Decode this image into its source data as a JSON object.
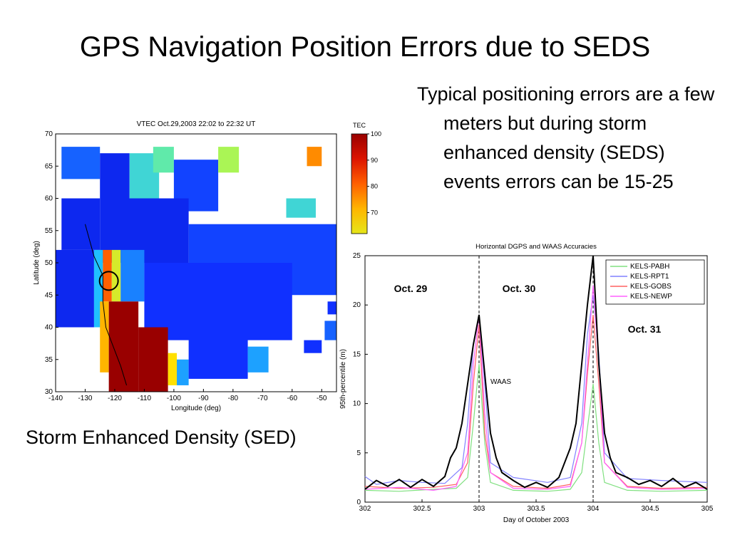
{
  "slide": {
    "title": "GPS Navigation Position Errors due to SEDS",
    "bullet": "Typical positioning errors are a few meters but during storm enhanced density (SEDS) events errors can be 15-25",
    "caption": "Storm Enhanced Density (SED)"
  },
  "colors": {
    "tec_low": "#1030ff",
    "tec_mid": "#20c0ff",
    "tec_high": "#ffe000",
    "tec_max": "#990000",
    "waas": "#000000",
    "kels_pabh": "#80e080",
    "kels_rpt1": "#8080ff",
    "kels_gobs": "#ff6060",
    "kels_newp": "#ff60ff"
  },
  "chart_data": [
    {
      "type": "heatmap",
      "title": "VTEC Oct.29,2003 22:02 to 22:32 UT",
      "xlabel": "Longitude (deg)",
      "ylabel": "Latitude (deg)",
      "xlim": [
        -140,
        -45
      ],
      "ylim": [
        30,
        70
      ],
      "xticks": [
        -140,
        -130,
        -120,
        -110,
        -100,
        -90,
        -80,
        -70,
        -60,
        -50
      ],
      "yticks": [
        30,
        35,
        40,
        45,
        50,
        55,
        60,
        65,
        70
      ],
      "colorbar": {
        "label": "TEC",
        "ticks": [
          100,
          90,
          80,
          70
        ]
      },
      "annotation": "circle marks SED region near (-122, 47)",
      "regions": [
        {
          "lon": [
            -138,
            -125
          ],
          "lat": [
            63,
            68
          ],
          "value": 20
        },
        {
          "lon": [
            -125,
            -115
          ],
          "lat": [
            60,
            67
          ],
          "value": 10
        },
        {
          "lon": [
            -115,
            -105
          ],
          "lat": [
            60,
            67
          ],
          "value": 40
        },
        {
          "lon": [
            -107,
            -100
          ],
          "lat": [
            64,
            68
          ],
          "value": 45
        },
        {
          "lon": [
            -100,
            -85
          ],
          "lat": [
            58,
            66
          ],
          "value": 15
        },
        {
          "lon": [
            -85,
            -78
          ],
          "lat": [
            64,
            68
          ],
          "value": 55
        },
        {
          "lon": [
            -55,
            -50
          ],
          "lat": [
            65,
            68
          ],
          "value": 75
        },
        {
          "lon": [
            -62,
            -52
          ],
          "lat": [
            57,
            60
          ],
          "value": 40
        },
        {
          "lon": [
            -138,
            -125
          ],
          "lat": [
            52,
            60
          ],
          "value": 10
        },
        {
          "lon": [
            -125,
            -95
          ],
          "lat": [
            50,
            60
          ],
          "value": 10
        },
        {
          "lon": [
            -95,
            -45
          ],
          "lat": [
            45,
            56
          ],
          "value": 15
        },
        {
          "lon": [
            -140,
            -127
          ],
          "lat": [
            40,
            52
          ],
          "value": 10
        },
        {
          "lon": [
            -127,
            -124
          ],
          "lat": [
            40,
            52
          ],
          "value": 35
        },
        {
          "lon": [
            -124,
            -121
          ],
          "lat": [
            44,
            52
          ],
          "value": 80
        },
        {
          "lon": [
            -121,
            -118
          ],
          "lat": [
            44,
            52
          ],
          "value": 60
        },
        {
          "lon": [
            -118,
            -110
          ],
          "lat": [
            44,
            52
          ],
          "value": 25
        },
        {
          "lon": [
            -110,
            -60
          ],
          "lat": [
            38,
            50
          ],
          "value": 12
        },
        {
          "lon": [
            -125,
            -122
          ],
          "lat": [
            33,
            44
          ],
          "value": 70
        },
        {
          "lon": [
            -122,
            -112
          ],
          "lat": [
            30,
            44
          ],
          "value": 100
        },
        {
          "lon": [
            -112,
            -102
          ],
          "lat": [
            30,
            40
          ],
          "value": 100
        },
        {
          "lon": [
            -102,
            -99
          ],
          "lat": [
            31,
            36
          ],
          "value": 65
        },
        {
          "lon": [
            -99,
            -95
          ],
          "lat": [
            31,
            35
          ],
          "value": 30
        },
        {
          "lon": [
            -95,
            -75
          ],
          "lat": [
            32,
            40
          ],
          "value": 12
        },
        {
          "lon": [
            -75,
            -68
          ],
          "lat": [
            33,
            37
          ],
          "value": 30
        },
        {
          "lon": [
            -56,
            -50
          ],
          "lat": [
            36,
            38
          ],
          "value": 12
        },
        {
          "lon": [
            -49,
            -45
          ],
          "lat": [
            38,
            41
          ],
          "value": 20
        },
        {
          "lon": [
            -48,
            -45
          ],
          "lat": [
            42,
            44
          ],
          "value": 12
        }
      ]
    },
    {
      "type": "line",
      "title": "Horizontal DGPS and WAAS Accuracies",
      "xlabel": "Day of October 2003",
      "ylabel": "95th-percentile (m)",
      "xlim": [
        302,
        305
      ],
      "ylim": [
        0,
        25
      ],
      "xticks": [
        302,
        302.5,
        303,
        303.5,
        304,
        304.5,
        305
      ],
      "yticks": [
        0,
        5,
        10,
        15,
        20,
        25
      ],
      "legend_position": "top-right",
      "day_markers": [
        303,
        304
      ],
      "day_labels": [
        {
          "text": "Oct. 29",
          "x": 302.4,
          "y": 21.3
        },
        {
          "text": "Oct. 30",
          "x": 303.35,
          "y": 21.3
        },
        {
          "text": "Oct. 31",
          "x": 304.45,
          "y": 17.2
        }
      ],
      "annotation": {
        "text": "WAAS",
        "x": 303.1,
        "y": 12
      },
      "series": [
        {
          "name": "KELS-PABH",
          "color": "#80e080",
          "x": [
            302,
            302.3,
            302.6,
            302.8,
            302.9,
            302.95,
            303,
            303.05,
            303.1,
            303.3,
            303.6,
            303.8,
            303.9,
            303.95,
            304,
            304.05,
            304.1,
            304.3,
            304.6,
            305
          ],
          "y": [
            1.2,
            1.1,
            1.3,
            1.4,
            2.5,
            8,
            14,
            6,
            2,
            1.2,
            1.1,
            1.3,
            3,
            7.5,
            12,
            6,
            2,
            1.2,
            1.1,
            1.2
          ]
        },
        {
          "name": "KELS-RPT1",
          "color": "#8080ff",
          "x": [
            302,
            302.1,
            302.3,
            302.5,
            302.7,
            302.85,
            302.9,
            302.95,
            303,
            303.05,
            303.1,
            303.3,
            303.6,
            303.8,
            303.9,
            303.95,
            304,
            304.05,
            304.1,
            304.3,
            304.6,
            305
          ],
          "y": [
            2.6,
            1.8,
            2.2,
            2.0,
            1.9,
            3.5,
            8,
            16,
            19,
            12,
            4,
            2.5,
            2.0,
            2.5,
            8,
            17,
            21,
            15,
            5,
            2.4,
            2.2,
            2.0
          ]
        },
        {
          "name": "KELS-GOBS",
          "color": "#ff6060",
          "x": [
            302,
            302.3,
            302.6,
            302.8,
            302.9,
            302.95,
            303,
            303.05,
            303.1,
            303.3,
            303.6,
            303.8,
            303.9,
            303.95,
            304,
            304.05,
            304.1,
            304.3,
            304.6,
            305
          ],
          "y": [
            1.6,
            1.4,
            1.5,
            1.8,
            4,
            12,
            18,
            7,
            3,
            1.6,
            1.4,
            1.8,
            6,
            13,
            19,
            12,
            4,
            1.6,
            1.4,
            1.5
          ]
        },
        {
          "name": "KELS-NEWP",
          "color": "#ff60ff",
          "x": [
            302,
            302.3,
            302.6,
            302.8,
            302.9,
            302.95,
            303,
            303.05,
            303.1,
            303.3,
            303.6,
            303.8,
            303.9,
            303.95,
            304,
            304.05,
            304.1,
            304.3,
            304.6,
            305
          ],
          "y": [
            1.3,
            1.5,
            1.2,
            1.6,
            5,
            14,
            19,
            9,
            3,
            1.4,
            1.3,
            1.6,
            6,
            14,
            22,
            14,
            4,
            1.5,
            1.3,
            1.4
          ]
        },
        {
          "name": "WAAS",
          "color": "#000000",
          "x": [
            302,
            302.1,
            302.2,
            302.3,
            302.4,
            302.5,
            302.6,
            302.7,
            302.75,
            302.8,
            302.85,
            302.9,
            302.95,
            303,
            303.05,
            303.1,
            303.15,
            303.2,
            303.3,
            303.4,
            303.5,
            303.6,
            303.7,
            303.75,
            303.8,
            303.85,
            303.9,
            303.95,
            304,
            304.05,
            304.1,
            304.15,
            304.2,
            304.3,
            304.4,
            304.5,
            304.6,
            304.7,
            304.8,
            304.9,
            305
          ],
          "y": [
            1.3,
            2.2,
            1.6,
            2.3,
            1.5,
            2.3,
            1.6,
            2.6,
            4.5,
            5.5,
            8,
            12,
            16,
            19,
            13,
            7,
            4.5,
            3,
            2.2,
            1.5,
            2.0,
            1.5,
            2.5,
            4,
            5.5,
            8,
            14,
            20,
            25,
            14,
            7,
            4.5,
            3,
            2.5,
            1.8,
            2.2,
            1.6,
            2.4,
            1.5,
            2.0,
            1.3
          ]
        }
      ]
    }
  ]
}
